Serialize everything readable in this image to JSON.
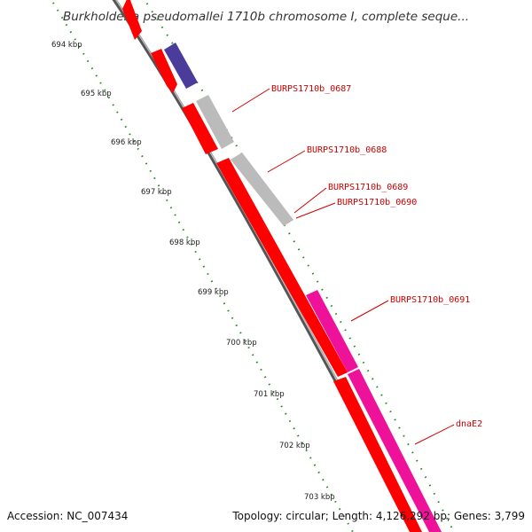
{
  "title": "Burkholderia pseudomallei 1710b chromosome I, complete seque...",
  "accession": "Accession: NC_007434",
  "summary": "Topology: circular; Length: 4,126,292 bp; Genes: 3,799",
  "ticks": [
    "694 kbp",
    "695 kbp",
    "696 kbp",
    "697 kbp",
    "698 kbp",
    "699 kbp",
    "700 kbp",
    "701 kbp",
    "702 kbp",
    "703 kbp"
  ],
  "gene_labels": [
    "BURPS1710b_0687",
    "BURPS1710b_0688",
    "BURPS1710b_0689",
    "BURPS1710b_0690",
    "BURPS1710b_0691",
    "dnaE2"
  ],
  "colors": {
    "red": "#ff0000",
    "grey": "#bbbbbb",
    "purple": "#4b3b9a",
    "magenta": "#ee1199",
    "tick": "#228822",
    "backbone": "#888888",
    "label": "#cc0000"
  }
}
